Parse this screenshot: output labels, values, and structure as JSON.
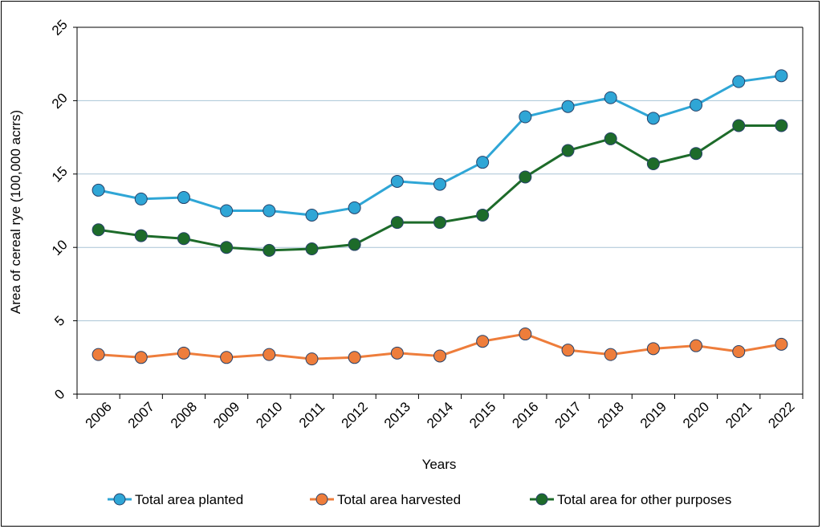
{
  "chart_data": {
    "type": "line",
    "title": "",
    "xlabel": "Years",
    "ylabel": "Area of cereal rye (100,000 acrrs)",
    "categories": [
      "2006",
      "2007",
      "2008",
      "2009",
      "2010",
      "2011",
      "2012",
      "2013",
      "2014",
      "2015",
      "2016",
      "2017",
      "2018",
      "2019",
      "2020",
      "2021",
      "2022"
    ],
    "ylim": [
      0,
      25
    ],
    "yticks": [
      "0",
      "5",
      "10",
      "15",
      "20",
      "25"
    ],
    "grid": "horizontal",
    "legend_position": "bottom",
    "series": [
      {
        "name": "Total area planted",
        "color": "#2fa6d6",
        "values": [
          13.9,
          13.3,
          13.4,
          12.5,
          12.5,
          12.2,
          12.7,
          14.5,
          14.3,
          15.8,
          18.9,
          19.6,
          20.2,
          18.8,
          19.7,
          21.3,
          21.7
        ]
      },
      {
        "name": "Total area harvested",
        "color": "#ee7d3b",
        "values": [
          2.7,
          2.5,
          2.8,
          2.5,
          2.7,
          2.4,
          2.5,
          2.8,
          2.6,
          3.6,
          4.1,
          3.0,
          2.7,
          3.1,
          3.3,
          2.9,
          3.4
        ]
      },
      {
        "name": "Total area for other purposes",
        "color": "#1d6b2a",
        "values": [
          11.2,
          10.8,
          10.6,
          10.0,
          9.8,
          9.9,
          10.2,
          11.7,
          11.7,
          12.2,
          14.8,
          16.6,
          17.4,
          15.7,
          16.4,
          18.3,
          18.3
        ]
      }
    ]
  }
}
